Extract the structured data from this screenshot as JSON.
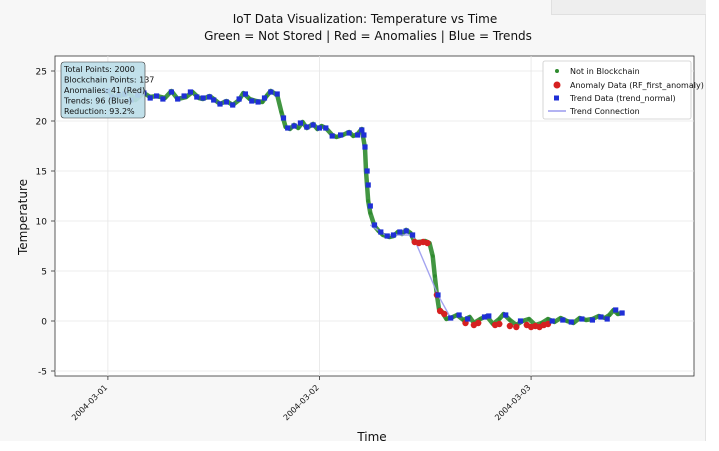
{
  "chart_data": {
    "type": "scatter",
    "title": "IoT Data Visualization: Temperature vs Time",
    "subtitle": "Green = Not Stored | Red = Anomalies | Blue = Trends",
    "xlabel": "Time",
    "ylabel": "Temperature",
    "ylim": [
      -5.5,
      26.5
    ],
    "xlim_days": [
      -0.25,
      2.77
    ],
    "yticks": [
      -5,
      0,
      5,
      10,
      15,
      20,
      25
    ],
    "xticks": [
      {
        "day": 0,
        "label": "2004-03-01"
      },
      {
        "day": 1,
        "label": "2004-03-02"
      },
      {
        "day": 2,
        "label": "2004-03-03"
      }
    ],
    "grid": true,
    "legend_position": "top-right",
    "legend": [
      {
        "label": "Not in Blockchain",
        "marker": "circle-small",
        "color": "#2e8b2e"
      },
      {
        "label": "Anomaly Data (RF_first_anomaly)",
        "marker": "circle",
        "color": "#d62020"
      },
      {
        "label": "Trend Data (trend_normal)",
        "marker": "square",
        "color": "#1f2fd6"
      },
      {
        "label": "Trend Connection",
        "marker": "line",
        "color": "#9a9aee"
      }
    ],
    "stats_box": [
      "Total Points: 2000",
      "Blockchain Points: 137",
      "Anomalies: 41 (Red)",
      "Trends: 96 (Blue)",
      "Reduction: 93.2%"
    ],
    "series": [
      {
        "name": "Not in Blockchain",
        "kind": "dense-line",
        "color": "#2e8b2e",
        "points": [
          [
            0.0,
            23.0
          ],
          [
            0.03,
            22.3
          ],
          [
            0.07,
            22.6
          ],
          [
            0.1,
            22.8
          ],
          [
            0.13,
            22.1
          ],
          [
            0.17,
            22.8
          ],
          [
            0.2,
            22.4
          ],
          [
            0.23,
            22.5
          ],
          [
            0.27,
            22.3
          ],
          [
            0.3,
            23.0
          ],
          [
            0.33,
            22.2
          ],
          [
            0.37,
            22.4
          ],
          [
            0.4,
            22.9
          ],
          [
            0.43,
            22.3
          ],
          [
            0.45,
            22.2
          ],
          [
            0.48,
            22.5
          ],
          [
            0.5,
            22.2
          ],
          [
            0.53,
            21.7
          ],
          [
            0.56,
            22.0
          ],
          [
            0.59,
            21.6
          ],
          [
            0.62,
            22.1
          ],
          [
            0.64,
            22.8
          ],
          [
            0.67,
            22.2
          ],
          [
            0.7,
            22.0
          ],
          [
            0.73,
            21.9
          ],
          [
            0.75,
            22.5
          ],
          [
            0.77,
            23.0
          ],
          [
            0.8,
            22.6
          ],
          [
            0.82,
            20.9
          ],
          [
            0.84,
            19.4
          ],
          [
            0.86,
            19.2
          ],
          [
            0.88,
            19.6
          ],
          [
            0.9,
            19.3
          ],
          [
            0.92,
            19.9
          ],
          [
            0.94,
            19.3
          ],
          [
            0.97,
            19.7
          ],
          [
            0.99,
            19.2
          ],
          [
            1.01,
            19.5
          ],
          [
            1.03,
            19.3
          ],
          [
            1.06,
            18.6
          ],
          [
            1.08,
            18.4
          ],
          [
            1.11,
            18.6
          ],
          [
            1.14,
            18.9
          ],
          [
            1.16,
            18.5
          ],
          [
            1.18,
            18.7
          ],
          [
            1.2,
            19.2
          ],
          [
            1.215,
            17.3
          ],
          [
            1.22,
            15.0
          ],
          [
            1.225,
            13.5
          ],
          [
            1.23,
            12.0
          ],
          [
            1.24,
            10.8
          ],
          [
            1.26,
            9.5
          ],
          [
            1.28,
            9.0
          ],
          [
            1.3,
            8.6
          ],
          [
            1.33,
            8.4
          ],
          [
            1.35,
            8.5
          ],
          [
            1.37,
            8.9
          ],
          [
            1.39,
            8.7
          ],
          [
            1.41,
            9.1
          ],
          [
            1.43,
            8.8
          ],
          [
            1.45,
            7.9
          ],
          [
            1.47,
            7.9
          ],
          [
            1.5,
            8.0
          ],
          [
            1.52,
            7.8
          ],
          [
            1.535,
            6.5
          ],
          [
            1.545,
            4.5
          ],
          [
            1.555,
            2.6
          ],
          [
            1.565,
            1.2
          ],
          [
            1.58,
            0.9
          ],
          [
            1.6,
            0.2
          ],
          [
            1.63,
            0.4
          ],
          [
            1.65,
            0.6
          ],
          [
            1.68,
            0.1
          ],
          [
            1.71,
            0.4
          ],
          [
            1.73,
            -0.2
          ],
          [
            1.76,
            0.2
          ],
          [
            1.79,
            0.5
          ],
          [
            1.82,
            -0.3
          ],
          [
            1.85,
            0.2
          ],
          [
            1.87,
            0.7
          ],
          [
            1.9,
            0.1
          ],
          [
            1.93,
            -0.4
          ],
          [
            1.96,
            0.0
          ],
          [
            1.99,
            0.2
          ],
          [
            2.02,
            -0.4
          ],
          [
            2.05,
            -0.2
          ],
          [
            2.08,
            0.2
          ],
          [
            2.11,
            -0.1
          ],
          [
            2.14,
            0.3
          ],
          [
            2.17,
            0.0
          ],
          [
            2.2,
            -0.2
          ],
          [
            2.23,
            0.3
          ],
          [
            2.26,
            0.1
          ],
          [
            2.29,
            0.2
          ],
          [
            2.32,
            0.5
          ],
          [
            2.35,
            0.3
          ],
          [
            2.37,
            0.6
          ],
          [
            2.39,
            1.1
          ],
          [
            2.41,
            0.7
          ],
          [
            2.43,
            0.8
          ]
        ]
      },
      {
        "name": "Anomaly Data (RF_first_anomaly)",
        "kind": "markers",
        "color": "#d62020",
        "points": [
          [
            1.45,
            7.9
          ],
          [
            1.47,
            7.8
          ],
          [
            1.49,
            7.9
          ],
          [
            1.51,
            7.8
          ],
          [
            1.555,
            2.6
          ],
          [
            1.57,
            1.0
          ],
          [
            1.59,
            0.7
          ],
          [
            1.69,
            -0.2
          ],
          [
            1.73,
            -0.4
          ],
          [
            1.75,
            -0.2
          ],
          [
            1.83,
            -0.4
          ],
          [
            1.85,
            -0.3
          ],
          [
            1.9,
            -0.5
          ],
          [
            1.93,
            -0.6
          ],
          [
            1.98,
            -0.4
          ],
          [
            2.0,
            -0.6
          ],
          [
            2.02,
            -0.5
          ],
          [
            2.04,
            -0.6
          ],
          [
            2.06,
            -0.4
          ],
          [
            2.08,
            -0.3
          ]
        ]
      },
      {
        "name": "Trend Data (trend_normal)",
        "kind": "markers",
        "color": "#1f2fd6",
        "points": [
          [
            0.0,
            23.0
          ],
          [
            0.02,
            22.4
          ],
          [
            0.05,
            22.6
          ],
          [
            0.08,
            22.7
          ],
          [
            0.11,
            22.1
          ],
          [
            0.14,
            22.6
          ],
          [
            0.17,
            22.8
          ],
          [
            0.2,
            22.3
          ],
          [
            0.23,
            22.5
          ],
          [
            0.26,
            22.2
          ],
          [
            0.3,
            22.9
          ],
          [
            0.33,
            22.2
          ],
          [
            0.36,
            22.5
          ],
          [
            0.39,
            22.9
          ],
          [
            0.42,
            22.4
          ],
          [
            0.45,
            22.3
          ],
          [
            0.48,
            22.4
          ],
          [
            0.5,
            22.1
          ],
          [
            0.53,
            21.7
          ],
          [
            0.56,
            21.9
          ],
          [
            0.59,
            21.6
          ],
          [
            0.62,
            22.2
          ],
          [
            0.65,
            22.7
          ],
          [
            0.68,
            22.0
          ],
          [
            0.71,
            21.9
          ],
          [
            0.74,
            22.3
          ],
          [
            0.77,
            22.9
          ],
          [
            0.8,
            22.7
          ],
          [
            0.83,
            20.3
          ],
          [
            0.85,
            19.3
          ],
          [
            0.88,
            19.5
          ],
          [
            0.91,
            19.8
          ],
          [
            0.94,
            19.4
          ],
          [
            0.97,
            19.6
          ],
          [
            1.0,
            19.3
          ],
          [
            1.03,
            19.3
          ],
          [
            1.06,
            18.5
          ],
          [
            1.1,
            18.6
          ],
          [
            1.14,
            18.8
          ],
          [
            1.18,
            18.6
          ],
          [
            1.2,
            19.1
          ],
          [
            1.21,
            18.6
          ],
          [
            1.215,
            17.4
          ],
          [
            1.225,
            15.0
          ],
          [
            1.23,
            13.6
          ],
          [
            1.24,
            11.5
          ],
          [
            1.26,
            9.6
          ],
          [
            1.29,
            8.9
          ],
          [
            1.32,
            8.5
          ],
          [
            1.35,
            8.6
          ],
          [
            1.38,
            8.9
          ],
          [
            1.41,
            9.0
          ],
          [
            1.44,
            8.6
          ],
          [
            1.56,
            2.6
          ],
          [
            1.62,
            0.3
          ],
          [
            1.66,
            0.6
          ],
          [
            1.7,
            0.2
          ],
          [
            1.78,
            0.4
          ],
          [
            1.8,
            0.5
          ],
          [
            1.88,
            0.6
          ],
          [
            1.95,
            0.0
          ],
          [
            2.1,
            0.0
          ],
          [
            2.15,
            0.1
          ],
          [
            2.19,
            -0.1
          ],
          [
            2.24,
            0.2
          ],
          [
            2.29,
            0.1
          ],
          [
            2.33,
            0.4
          ],
          [
            2.36,
            0.2
          ],
          [
            2.4,
            1.1
          ],
          [
            2.43,
            0.8
          ]
        ]
      },
      {
        "name": "Trend Connection",
        "kind": "line",
        "color": "#9a9aee",
        "points": [
          [
            1.24,
            9.6
          ],
          [
            1.31,
            8.6
          ],
          [
            1.44,
            8.6
          ],
          [
            1.56,
            2.6
          ],
          [
            1.62,
            0.3
          ]
        ]
      }
    ]
  }
}
